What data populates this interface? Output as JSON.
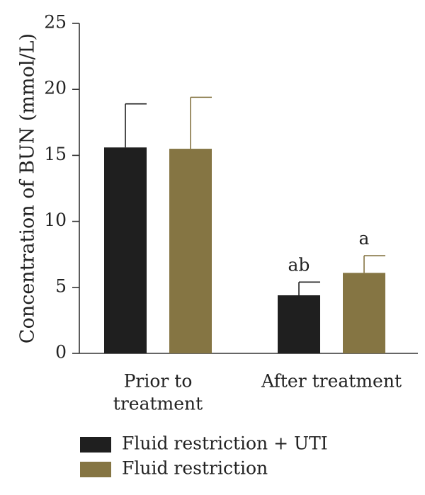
{
  "chart_data": {
    "type": "bar",
    "categories": [
      "Prior to treatment",
      "After treatment"
    ],
    "category_lines": [
      [
        "Prior to",
        "treatment"
      ],
      [
        "After treatment"
      ]
    ],
    "series": [
      {
        "name": "Fluid restriction + UTI",
        "values": [
          15.6,
          4.4
        ],
        "errors": [
          3.3,
          1.0
        ],
        "color": "#1f1f1f",
        "annotations": [
          "",
          "ab"
        ]
      },
      {
        "name": "Fluid restriction",
        "values": [
          15.5,
          6.1
        ],
        "errors": [
          3.9,
          1.3
        ],
        "color": "#857543",
        "annotations": [
          "",
          "a"
        ]
      }
    ],
    "title": "",
    "xlabel": "",
    "ylabel": "Concentration of BUN (mmol/L)",
    "ylim": [
      0,
      25
    ],
    "yticks": [
      0,
      5,
      10,
      15,
      20,
      25
    ],
    "grid": false,
    "legend_position": "bottom-left"
  }
}
